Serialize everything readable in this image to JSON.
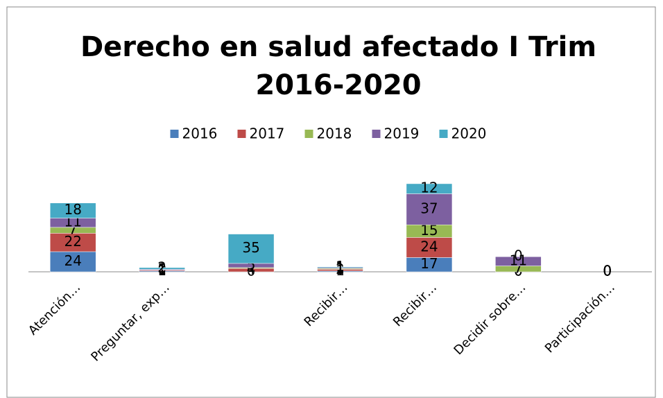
{
  "chart_data": {
    "type": "bar",
    "stacked": true,
    "title": "Derecho en salud afectado I Trim",
    "subtitle": "2016-2020",
    "categories": [
      "Atención…",
      "Preguntar, exp…",
      null,
      "Recibir…",
      "Recibir…",
      "Decidir sobre…",
      "Participación…"
    ],
    "series": [
      {
        "name": "2016",
        "color": "#4a7ebb",
        "values": [
          24,
          1,
          0,
          1,
          17,
          0,
          0
        ]
      },
      {
        "name": "2017",
        "color": "#be4b48",
        "values": [
          22,
          1,
          4,
          2,
          24,
          0,
          0
        ]
      },
      {
        "name": "2018",
        "color": "#98b954",
        "values": [
          7,
          0,
          1,
          1,
          15,
          7,
          0
        ]
      },
      {
        "name": "2019",
        "color": "#7d60a0",
        "values": [
          11,
          1,
          5,
          1,
          37,
          11,
          0
        ]
      },
      {
        "name": "2020",
        "color": "#46aac5",
        "values": [
          18,
          2,
          35,
          1,
          12,
          0,
          0
        ]
      }
    ],
    "legend": "top"
  }
}
